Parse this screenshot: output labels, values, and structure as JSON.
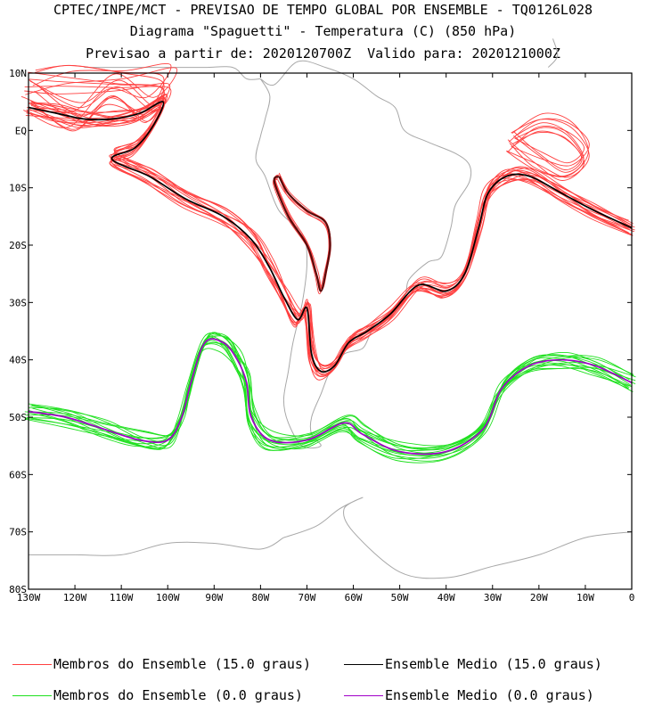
{
  "title": {
    "line1": "CPTEC/INPE/MCT - PREVISAO DE TEMPO GLOBAL POR ENSEMBLE - TQ0126L028",
    "line2": "Diagrama \"Spaguetti\" - Temperatura (C) (850 hPa)",
    "line3": "Previsao a partir de: 2020120700Z  Valido para: 2020121000Z"
  },
  "map": {
    "lon_range": [
      -130,
      0
    ],
    "lat_range": [
      -80,
      10
    ],
    "lat_ticks": [
      {
        "lat": 10,
        "label": "10N"
      },
      {
        "lat": 0,
        "label": "EQ"
      },
      {
        "lat": -10,
        "label": "10S"
      },
      {
        "lat": -20,
        "label": "20S"
      },
      {
        "lat": -30,
        "label": "30S"
      },
      {
        "lat": -40,
        "label": "40S"
      },
      {
        "lat": -50,
        "label": "50S"
      },
      {
        "lat": -60,
        "label": "60S"
      },
      {
        "lat": -70,
        "label": "70S"
      },
      {
        "lat": -80,
        "label": "80S"
      }
    ],
    "lon_ticks": [
      {
        "lon": -130,
        "label": "130W"
      },
      {
        "lon": -120,
        "label": "120W"
      },
      {
        "lon": -110,
        "label": "110W"
      },
      {
        "lon": -100,
        "label": "100W"
      },
      {
        "lon": -90,
        "label": "90W"
      },
      {
        "lon": -80,
        "label": "80W"
      },
      {
        "lon": -70,
        "label": "70W"
      },
      {
        "lon": -60,
        "label": "60W"
      },
      {
        "lon": -50,
        "label": "50W"
      },
      {
        "lon": -40,
        "label": "40W"
      },
      {
        "lon": -30,
        "label": "30W"
      },
      {
        "lon": -20,
        "label": "20W"
      },
      {
        "lon": -10,
        "label": "10W"
      },
      {
        "lon": 0,
        "label": "0"
      }
    ],
    "colors": {
      "members_15": "#ff4040",
      "mean_15": "#000000",
      "mean_15_andes": "#5a0a0a",
      "members_0": "#1fe01f",
      "mean_0": "#a000c8",
      "coast": "#a8a8a8"
    }
  },
  "isotherms": {
    "ensemble_mean_15": [
      [
        -130,
        4
      ],
      [
        -124,
        3
      ],
      [
        -118,
        2
      ],
      [
        -112,
        2
      ],
      [
        -106,
        3
      ],
      [
        -101,
        5
      ],
      [
        -103,
        1
      ],
      [
        -107,
        -3
      ],
      [
        -112,
        -5
      ],
      [
        -104,
        -8
      ],
      [
        -96,
        -12
      ],
      [
        -88,
        -15
      ],
      [
        -82,
        -19
      ],
      [
        -78,
        -24
      ],
      [
        -75,
        -29
      ],
      [
        -72,
        -33
      ],
      [
        -70,
        -31
      ],
      [
        -69,
        -39
      ],
      [
        -67,
        -42
      ],
      [
        -64,
        -41
      ],
      [
        -61,
        -37
      ],
      [
        -57,
        -35
      ],
      [
        -52,
        -32
      ],
      [
        -46,
        -27
      ],
      [
        -40,
        -28
      ],
      [
        -36,
        -25
      ],
      [
        -33,
        -17
      ],
      [
        -31,
        -11
      ],
      [
        -27,
        -8
      ],
      [
        -22,
        -8
      ],
      [
        -15,
        -11
      ],
      [
        -8,
        -14
      ],
      [
        0,
        -17
      ]
    ],
    "ensemble_mean_15_andes": [
      [
        -76,
        -8
      ],
      [
        -74,
        -11
      ],
      [
        -70,
        -14
      ],
      [
        -66,
        -16
      ],
      [
        -65,
        -20
      ],
      [
        -66,
        -25
      ],
      [
        -67,
        -28
      ],
      [
        -68,
        -25
      ],
      [
        -70,
        -20
      ],
      [
        -74,
        -15
      ],
      [
        -77,
        -9
      ],
      [
        -76,
        -8
      ]
    ],
    "ensemble_mean_0": [
      [
        -130,
        -49
      ],
      [
        -122,
        -50
      ],
      [
        -114,
        -52
      ],
      [
        -106,
        -54
      ],
      [
        -100,
        -54
      ],
      [
        -97,
        -50
      ],
      [
        -95,
        -44
      ],
      [
        -92,
        -37
      ],
      [
        -88,
        -37
      ],
      [
        -85,
        -40
      ],
      [
        -83,
        -44
      ],
      [
        -82,
        -50
      ],
      [
        -78,
        -54
      ],
      [
        -70,
        -54
      ],
      [
        -62,
        -51
      ],
      [
        -58,
        -53
      ],
      [
        -50,
        -56
      ],
      [
        -40,
        -56
      ],
      [
        -32,
        -52
      ],
      [
        -28,
        -45
      ],
      [
        -22,
        -41
      ],
      [
        -15,
        -40
      ],
      [
        -8,
        -41
      ],
      [
        0,
        -44
      ]
    ]
  },
  "legend": {
    "members_15": "Membros do Ensemble (15.0 graus)",
    "mean_15": "Ensemble Medio (15.0 graus)",
    "members_0": "Membros do Ensemble (0.0 graus)",
    "mean_0": "Ensemble Medio (0.0 graus)"
  }
}
